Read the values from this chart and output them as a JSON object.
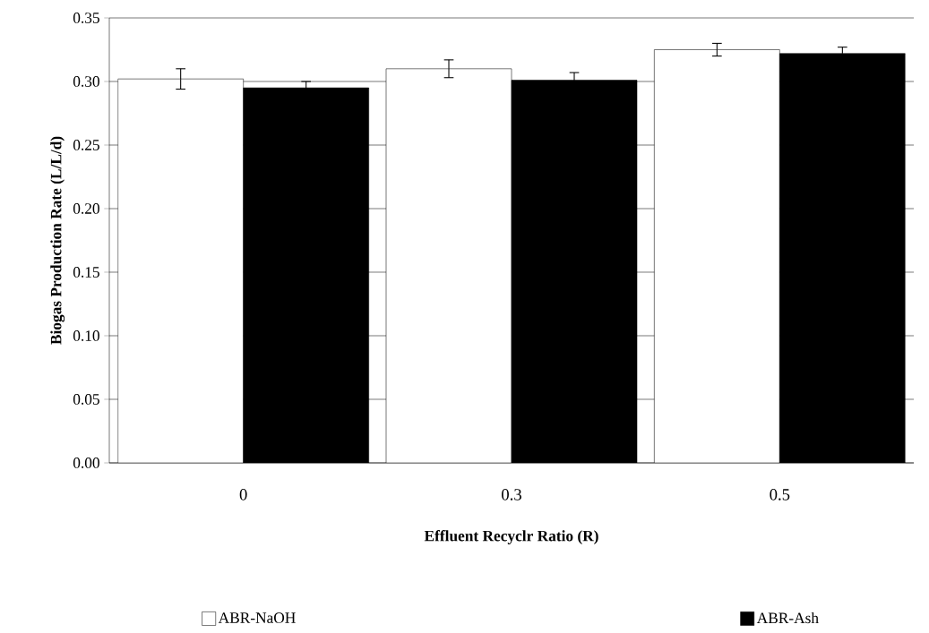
{
  "chart_data": {
    "type": "bar",
    "xlabel": "Effluent Recyclr Ratio (R)",
    "ylabel": "Biogas Production Rate (L/L/d)",
    "categories": [
      "0",
      "0.3",
      "0.5"
    ],
    "series": [
      {
        "name": "ABR-NaOH",
        "color": "#ffffff",
        "values": [
          0.302,
          0.31,
          0.325
        ],
        "errors": [
          0.008,
          0.007,
          0.005
        ]
      },
      {
        "name": "ABR-Ash",
        "color": "#000000",
        "values": [
          0.295,
          0.301,
          0.322
        ],
        "errors": [
          0.005,
          0.006,
          0.005
        ]
      }
    ],
    "ylim": [
      0,
      0.35
    ],
    "yticks": [
      {
        "value": 0,
        "label": "0.00"
      },
      {
        "value": 0.05,
        "label": "0.05"
      },
      {
        "value": 0.1,
        "label": "0.10"
      },
      {
        "value": 0.15,
        "label": "0.15"
      },
      {
        "value": 0.2,
        "label": "0.20"
      },
      {
        "value": 0.25,
        "label": "0.25"
      },
      {
        "value": 0.3,
        "label": "0.30"
      },
      {
        "value": 0.35,
        "label": "0.35"
      }
    ],
    "grid": "y",
    "legend": "bottom"
  }
}
